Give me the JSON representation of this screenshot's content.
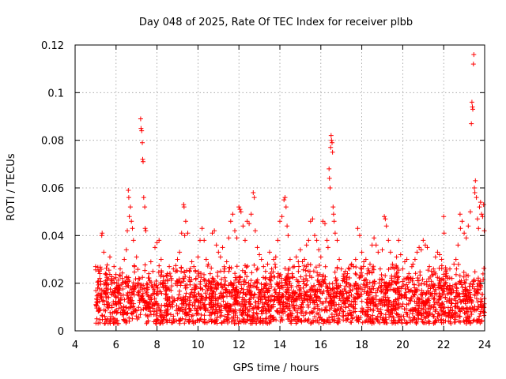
{
  "chart_data": {
    "type": "scatter",
    "title": "Day 048 of 2025, Rate Of TEC Index for receiver plbb",
    "xlabel": "GPS time / hours",
    "ylabel": "ROTI / TECUs",
    "xlim": [
      4,
      24
    ],
    "ylim": [
      0,
      0.12
    ],
    "xticks": [
      4,
      6,
      8,
      10,
      12,
      14,
      16,
      18,
      20,
      22,
      24
    ],
    "yticks": [
      0,
      0.02,
      0.04,
      0.06,
      0.08,
      0.1,
      0.12
    ],
    "xtick_labels": [
      "4",
      "6",
      "8",
      "10",
      "12",
      "14",
      "16",
      "18",
      "20",
      "22",
      "24"
    ],
    "ytick_labels": [
      "0",
      "0.02",
      "0.04",
      "0.06",
      "0.08",
      "0.1",
      "0.12"
    ],
    "grid": true,
    "marker": "+",
    "color": "#ff0000",
    "series": [
      {
        "name": "ROTI",
        "points": [
          [
            5.0,
            0.027
          ],
          [
            5.05,
            0.012
          ],
          [
            5.1,
            0.018
          ],
          [
            5.15,
            0.009
          ],
          [
            5.2,
            0.022
          ],
          [
            5.3,
            0.04
          ],
          [
            5.32,
            0.041
          ],
          [
            5.4,
            0.033
          ],
          [
            5.5,
            0.024
          ],
          [
            5.6,
            0.016
          ],
          [
            5.7,
            0.031
          ],
          [
            5.8,
            0.021
          ],
          [
            5.9,
            0.027
          ],
          [
            6.0,
            0.014
          ],
          [
            6.1,
            0.019
          ],
          [
            6.2,
            0.026
          ],
          [
            6.3,
            0.022
          ],
          [
            6.4,
            0.03
          ],
          [
            6.5,
            0.034
          ],
          [
            6.55,
            0.042
          ],
          [
            6.6,
            0.059
          ],
          [
            6.62,
            0.056
          ],
          [
            6.65,
            0.048
          ],
          [
            6.7,
            0.052
          ],
          [
            6.75,
            0.046
          ],
          [
            6.8,
            0.043
          ],
          [
            6.85,
            0.038
          ],
          [
            6.9,
            0.027
          ],
          [
            7.0,
            0.031
          ],
          [
            7.1,
            0.022
          ],
          [
            7.2,
            0.089
          ],
          [
            7.22,
            0.085
          ],
          [
            7.25,
            0.084
          ],
          [
            7.28,
            0.079
          ],
          [
            7.3,
            0.072
          ],
          [
            7.32,
            0.071
          ],
          [
            7.35,
            0.056
          ],
          [
            7.4,
            0.052
          ],
          [
            7.42,
            0.043
          ],
          [
            7.45,
            0.042
          ],
          [
            7.5,
            0.016
          ],
          [
            7.6,
            0.024
          ],
          [
            7.7,
            0.029
          ],
          [
            7.8,
            0.025
          ],
          [
            7.9,
            0.035
          ],
          [
            8.0,
            0.037
          ],
          [
            8.1,
            0.038
          ],
          [
            8.2,
            0.03
          ],
          [
            8.3,
            0.021
          ],
          [
            8.4,
            0.019
          ],
          [
            8.5,
            0.024
          ],
          [
            8.6,
            0.027
          ],
          [
            8.7,
            0.022
          ],
          [
            8.8,
            0.026
          ],
          [
            8.9,
            0.025
          ],
          [
            9.0,
            0.03
          ],
          [
            9.1,
            0.033
          ],
          [
            9.2,
            0.041
          ],
          [
            9.3,
            0.053
          ],
          [
            9.32,
            0.052
          ],
          [
            9.35,
            0.04
          ],
          [
            9.4,
            0.046
          ],
          [
            9.5,
            0.041
          ],
          [
            9.6,
            0.025
          ],
          [
            9.7,
            0.029
          ],
          [
            9.8,
            0.027
          ],
          [
            9.9,
            0.022
          ],
          [
            10.0,
            0.031
          ],
          [
            10.1,
            0.038
          ],
          [
            10.2,
            0.043
          ],
          [
            10.3,
            0.038
          ],
          [
            10.4,
            0.03
          ],
          [
            10.5,
            0.028
          ],
          [
            10.6,
            0.024
          ],
          [
            10.7,
            0.041
          ],
          [
            10.8,
            0.042
          ],
          [
            10.9,
            0.036
          ],
          [
            11.0,
            0.033
          ],
          [
            11.1,
            0.031
          ],
          [
            11.2,
            0.035
          ],
          [
            11.3,
            0.026
          ],
          [
            11.4,
            0.029
          ],
          [
            11.5,
            0.039
          ],
          [
            11.6,
            0.046
          ],
          [
            11.7,
            0.049
          ],
          [
            11.8,
            0.042
          ],
          [
            11.9,
            0.039
          ],
          [
            12.0,
            0.052
          ],
          [
            12.05,
            0.051
          ],
          [
            12.1,
            0.05
          ],
          [
            12.2,
            0.044
          ],
          [
            12.3,
            0.038
          ],
          [
            12.4,
            0.046
          ],
          [
            12.5,
            0.045
          ],
          [
            12.6,
            0.049
          ],
          [
            12.7,
            0.058
          ],
          [
            12.75,
            0.056
          ],
          [
            12.8,
            0.042
          ],
          [
            12.9,
            0.035
          ],
          [
            13.0,
            0.032
          ],
          [
            13.1,
            0.03
          ],
          [
            13.2,
            0.027
          ],
          [
            13.3,
            0.025
          ],
          [
            13.4,
            0.028
          ],
          [
            13.5,
            0.033
          ],
          [
            13.6,
            0.026
          ],
          [
            13.7,
            0.03
          ],
          [
            13.8,
            0.031
          ],
          [
            13.9,
            0.038
          ],
          [
            14.0,
            0.046
          ],
          [
            14.1,
            0.048
          ],
          [
            14.2,
            0.055
          ],
          [
            14.25,
            0.056
          ],
          [
            14.3,
            0.052
          ],
          [
            14.35,
            0.044
          ],
          [
            14.4,
            0.04
          ],
          [
            14.5,
            0.03
          ],
          [
            14.6,
            0.024
          ],
          [
            14.7,
            0.027
          ],
          [
            14.8,
            0.031
          ],
          [
            14.9,
            0.029
          ],
          [
            15.0,
            0.034
          ],
          [
            15.1,
            0.029
          ],
          [
            15.2,
            0.03
          ],
          [
            15.3,
            0.036
          ],
          [
            15.4,
            0.038
          ],
          [
            15.5,
            0.046
          ],
          [
            15.6,
            0.047
          ],
          [
            15.7,
            0.04
          ],
          [
            15.8,
            0.038
          ],
          [
            15.9,
            0.034
          ],
          [
            16.0,
            0.031
          ],
          [
            16.1,
            0.046
          ],
          [
            16.2,
            0.045
          ],
          [
            16.3,
            0.038
          ],
          [
            16.35,
            0.035
          ],
          [
            16.4,
            0.068
          ],
          [
            16.42,
            0.064
          ],
          [
            16.45,
            0.06
          ],
          [
            16.48,
            0.077
          ],
          [
            16.5,
            0.082
          ],
          [
            16.52,
            0.08
          ],
          [
            16.55,
            0.079
          ],
          [
            16.57,
            0.075
          ],
          [
            16.6,
            0.052
          ],
          [
            16.62,
            0.049
          ],
          [
            16.65,
            0.046
          ],
          [
            16.7,
            0.041
          ],
          [
            16.8,
            0.038
          ],
          [
            16.9,
            0.03
          ],
          [
            17.0,
            0.026
          ],
          [
            17.1,
            0.022
          ],
          [
            17.2,
            0.025
          ],
          [
            17.3,
            0.024
          ],
          [
            17.4,
            0.026
          ],
          [
            17.5,
            0.028
          ],
          [
            17.6,
            0.027
          ],
          [
            17.7,
            0.03
          ],
          [
            17.8,
            0.043
          ],
          [
            17.9,
            0.04
          ],
          [
            18.0,
            0.033
          ],
          [
            18.1,
            0.029
          ],
          [
            18.2,
            0.03
          ],
          [
            18.3,
            0.026
          ],
          [
            18.4,
            0.028
          ],
          [
            18.5,
            0.036
          ],
          [
            18.6,
            0.039
          ],
          [
            18.7,
            0.036
          ],
          [
            18.8,
            0.033
          ],
          [
            18.9,
            0.026
          ],
          [
            19.0,
            0.034
          ],
          [
            19.1,
            0.048
          ],
          [
            19.15,
            0.047
          ],
          [
            19.2,
            0.044
          ],
          [
            19.3,
            0.038
          ],
          [
            19.4,
            0.033
          ],
          [
            19.5,
            0.028
          ],
          [
            19.6,
            0.026
          ],
          [
            19.7,
            0.031
          ],
          [
            19.8,
            0.038
          ],
          [
            19.9,
            0.032
          ],
          [
            20.0,
            0.026
          ],
          [
            20.1,
            0.029
          ],
          [
            20.2,
            0.03
          ],
          [
            20.3,
            0.024
          ],
          [
            20.4,
            0.022
          ],
          [
            20.5,
            0.028
          ],
          [
            20.6,
            0.03
          ],
          [
            20.7,
            0.033
          ],
          [
            20.8,
            0.035
          ],
          [
            20.9,
            0.034
          ],
          [
            21.0,
            0.038
          ],
          [
            21.1,
            0.036
          ],
          [
            21.2,
            0.035
          ],
          [
            21.3,
            0.027
          ],
          [
            21.4,
            0.025
          ],
          [
            21.5,
            0.026
          ],
          [
            21.6,
            0.031
          ],
          [
            21.7,
            0.033
          ],
          [
            21.8,
            0.032
          ],
          [
            21.9,
            0.03
          ],
          [
            22.0,
            0.048
          ],
          [
            22.02,
            0.041
          ],
          [
            22.1,
            0.025
          ],
          [
            22.2,
            0.022
          ],
          [
            22.3,
            0.026
          ],
          [
            22.4,
            0.022
          ],
          [
            22.5,
            0.028
          ],
          [
            22.6,
            0.03
          ],
          [
            22.7,
            0.036
          ],
          [
            22.8,
            0.049
          ],
          [
            22.82,
            0.043
          ],
          [
            22.9,
            0.046
          ],
          [
            23.0,
            0.041
          ],
          [
            23.1,
            0.039
          ],
          [
            23.2,
            0.044
          ],
          [
            23.3,
            0.05
          ],
          [
            23.35,
            0.087
          ],
          [
            23.38,
            0.096
          ],
          [
            23.4,
            0.094
          ],
          [
            23.42,
            0.093
          ],
          [
            23.45,
            0.112
          ],
          [
            23.47,
            0.116
          ],
          [
            23.5,
            0.06
          ],
          [
            23.52,
            0.058
          ],
          [
            23.55,
            0.063
          ],
          [
            23.6,
            0.056
          ],
          [
            23.65,
            0.047
          ],
          [
            23.7,
            0.043
          ],
          [
            23.75,
            0.052
          ],
          [
            23.8,
            0.054
          ],
          [
            23.85,
            0.049
          ],
          [
            23.9,
            0.048
          ],
          [
            23.95,
            0.053
          ],
          [
            23.98,
            0.042
          ]
        ],
        "dense_band": {
          "x_range": [
            5.0,
            24.0
          ],
          "y_center_range": [
            0.008,
            0.018
          ],
          "y_min": 0.003,
          "y_max": 0.028,
          "description_level": "continuous dense band"
        }
      }
    ]
  }
}
